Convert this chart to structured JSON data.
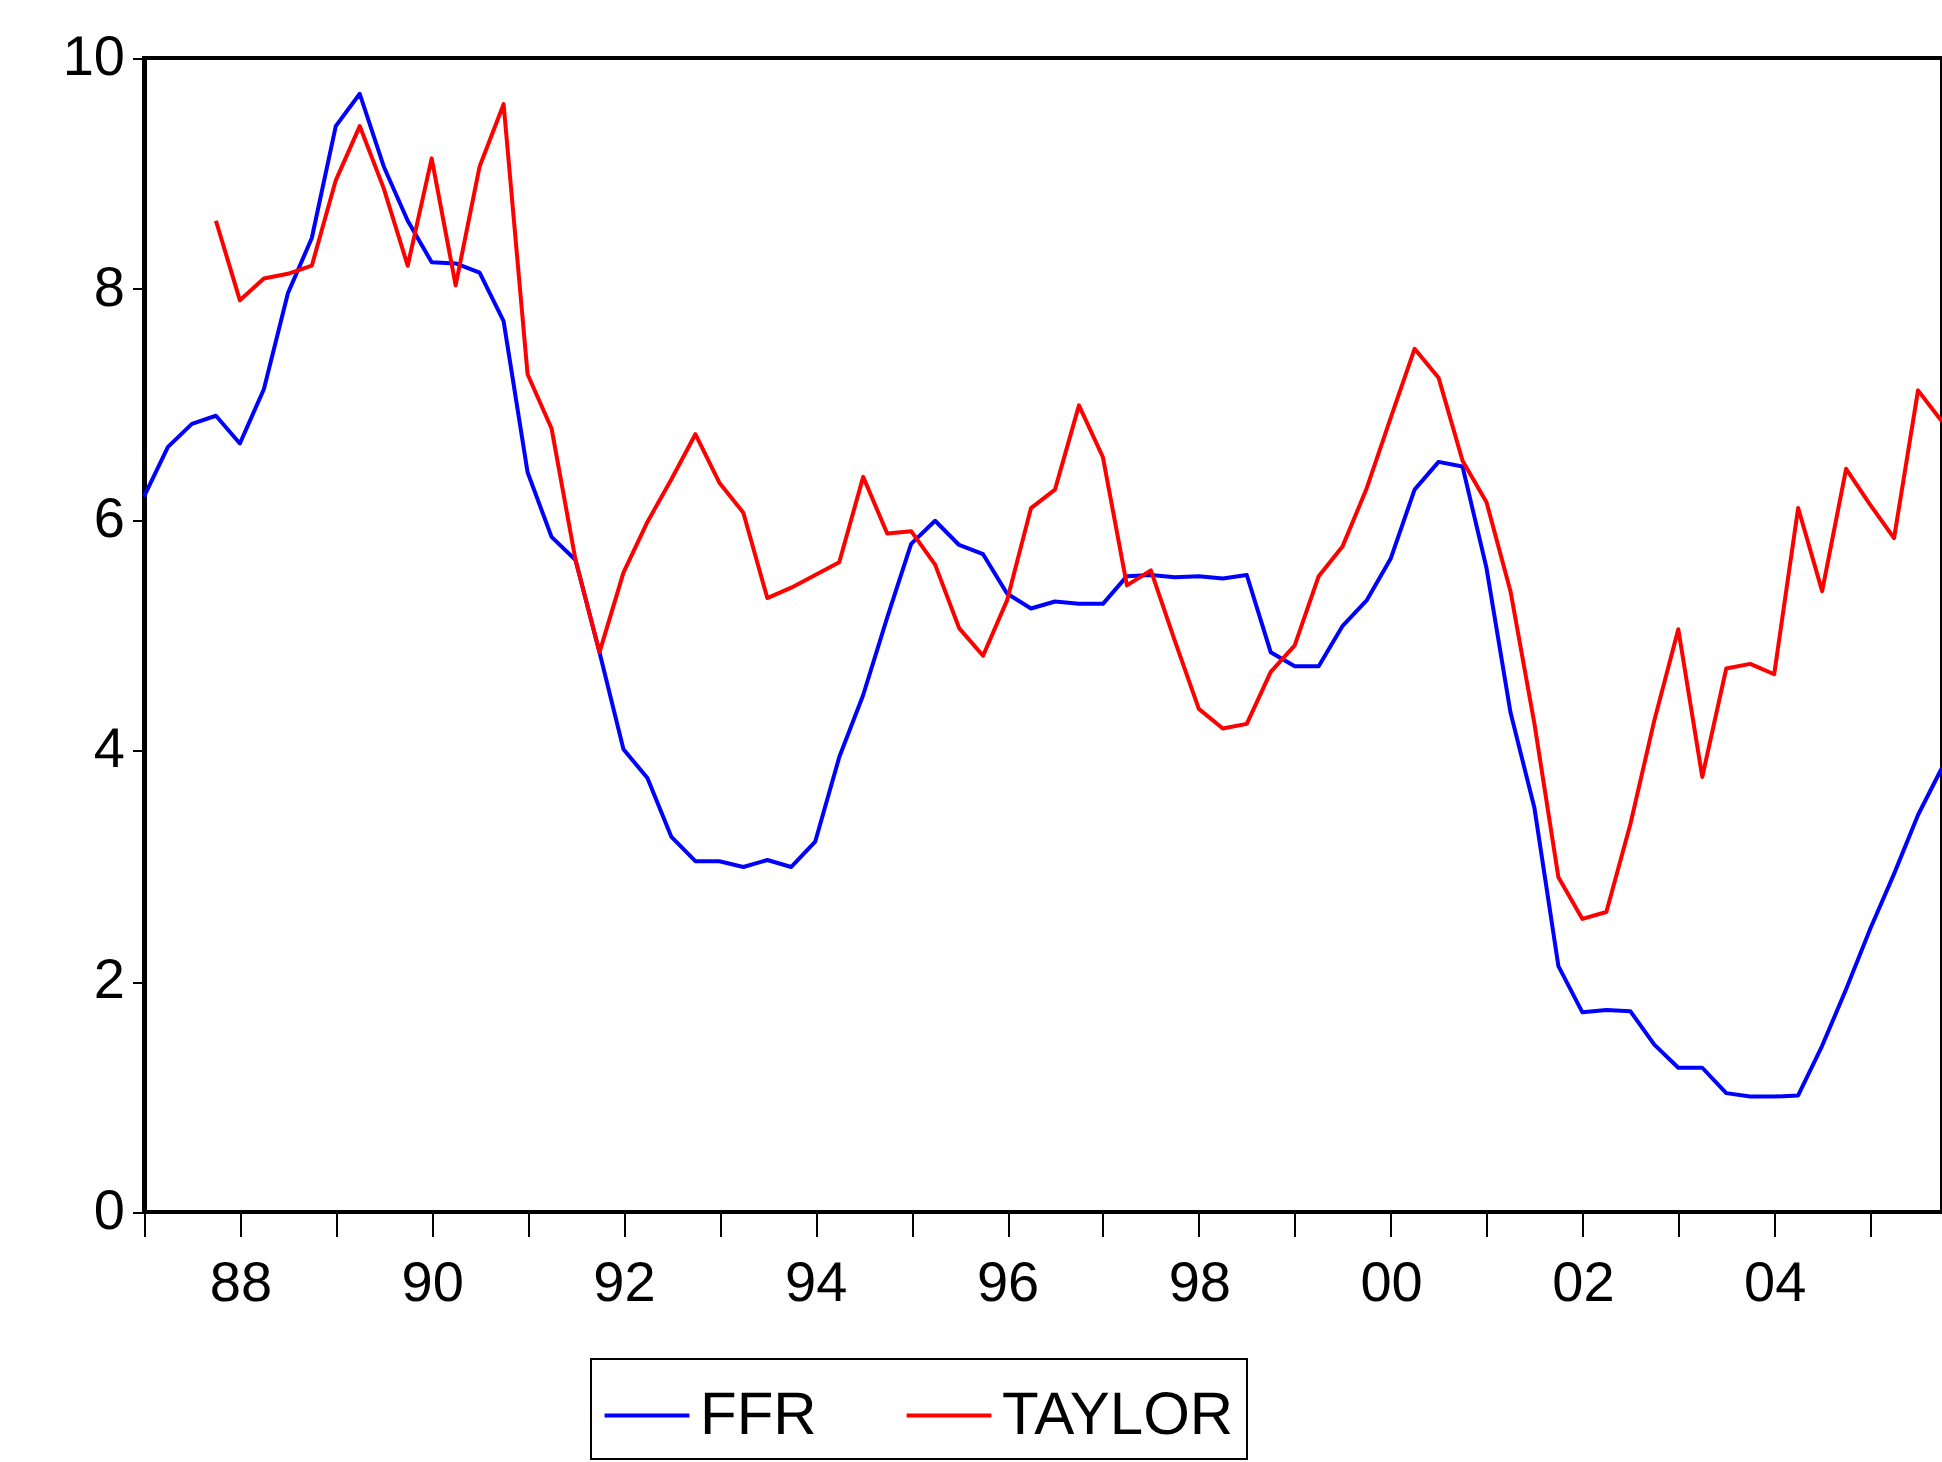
{
  "chart_data": {
    "type": "line",
    "x": [
      1987,
      1987.25,
      1987.5,
      1987.75,
      1988,
      1988.25,
      1988.5,
      1988.75,
      1989,
      1989.25,
      1989.5,
      1989.75,
      1990,
      1990.25,
      1990.5,
      1990.75,
      1991,
      1991.25,
      1991.5,
      1991.75,
      1992,
      1992.25,
      1992.5,
      1992.75,
      1993,
      1993.25,
      1993.5,
      1993.75,
      1994,
      1994.25,
      1994.5,
      1994.75,
      1995,
      1995.25,
      1995.5,
      1995.75,
      1996,
      1996.25,
      1996.5,
      1996.75,
      1997,
      1997.25,
      1997.5,
      1997.75,
      1998,
      1998.25,
      1998.5,
      1998.75,
      1999,
      1999.25,
      1999.5,
      1999.75,
      2000,
      2000.25,
      2000.5,
      2000.75,
      2001,
      2001.25,
      2001.5,
      2001.75,
      2002,
      2002.25,
      2002.5,
      2002.75,
      2003,
      2003.25,
      2003.5,
      2003.75,
      2004,
      2004.25,
      2004.5,
      2004.75,
      2005,
      2005.25,
      2005.5,
      2005.75
    ],
    "series": [
      {
        "name": "FFR",
        "color": "#0000ff",
        "values": [
          6.2,
          6.63,
          6.83,
          6.9,
          6.66,
          7.13,
          7.96,
          8.44,
          9.41,
          9.69,
          9.06,
          8.59,
          8.23,
          8.22,
          8.14,
          7.72,
          6.41,
          5.85,
          5.65,
          4.85,
          4.01,
          3.76,
          3.25,
          3.04,
          3.04,
          2.99,
          3.05,
          2.99,
          3.21,
          3.94,
          4.48,
          5.15,
          5.79,
          5.99,
          5.78,
          5.7,
          5.36,
          5.23,
          5.29,
          5.27,
          5.27,
          5.51,
          5.52,
          5.5,
          5.51,
          5.49,
          5.52,
          4.85,
          4.73,
          4.73,
          5.08,
          5.3,
          5.66,
          6.26,
          6.5,
          6.46,
          5.58,
          4.33,
          3.5,
          2.13,
          1.73,
          1.75,
          1.74,
          1.45,
          1.25,
          1.25,
          1.03,
          1.0,
          1.0,
          1.01,
          1.44,
          1.93,
          2.45,
          2.93,
          3.44,
          3.85
        ]
      },
      {
        "name": "TAYLOR",
        "color": "#ff0000",
        "values": [
          null,
          null,
          null,
          8.59,
          7.9,
          8.09,
          8.13,
          8.2,
          8.94,
          9.41,
          8.87,
          8.2,
          9.13,
          8.03,
          9.06,
          9.6,
          7.26,
          6.79,
          5.65,
          4.85,
          5.54,
          5.98,
          6.35,
          6.74,
          6.32,
          6.06,
          5.32,
          5.41,
          5.52,
          5.63,
          6.37,
          5.88,
          5.9,
          5.61,
          5.06,
          4.82,
          5.3,
          6.1,
          6.26,
          6.99,
          6.54,
          5.43,
          5.56,
          4.95,
          4.36,
          4.19,
          4.23,
          4.68,
          4.91,
          5.51,
          5.77,
          6.27,
          6.88,
          7.48,
          7.23,
          6.51,
          6.15,
          5.38,
          4.23,
          2.9,
          2.54,
          2.6,
          3.36,
          4.26,
          5.05,
          3.77,
          4.71,
          4.75,
          4.66,
          6.1,
          5.38,
          6.44,
          6.13,
          5.84,
          7.12,
          6.85
        ]
      }
    ],
    "xlim": [
      1987,
      2005.75
    ],
    "xticks": [
      {
        "value": 1987,
        "label": null
      },
      {
        "value": 1988,
        "label": "88"
      },
      {
        "value": 1989,
        "label": null
      },
      {
        "value": 1990,
        "label": "90"
      },
      {
        "value": 1991,
        "label": null
      },
      {
        "value": 1992,
        "label": "92"
      },
      {
        "value": 1993,
        "label": null
      },
      {
        "value": 1994,
        "label": "94"
      },
      {
        "value": 1995,
        "label": null
      },
      {
        "value": 1996,
        "label": "96"
      },
      {
        "value": 1997,
        "label": null
      },
      {
        "value": 1998,
        "label": "98"
      },
      {
        "value": 1999,
        "label": null
      },
      {
        "value": 2000,
        "label": "00"
      },
      {
        "value": 2001,
        "label": null
      },
      {
        "value": 2002,
        "label": "02"
      },
      {
        "value": 2003,
        "label": null
      },
      {
        "value": 2004,
        "label": "04"
      },
      {
        "value": 2005,
        "label": null
      }
    ],
    "ylim": [
      0,
      10
    ],
    "yticks": [
      0,
      2,
      4,
      6,
      8,
      10
    ],
    "grid": false,
    "legend": "bottom",
    "line_style": "solid"
  }
}
